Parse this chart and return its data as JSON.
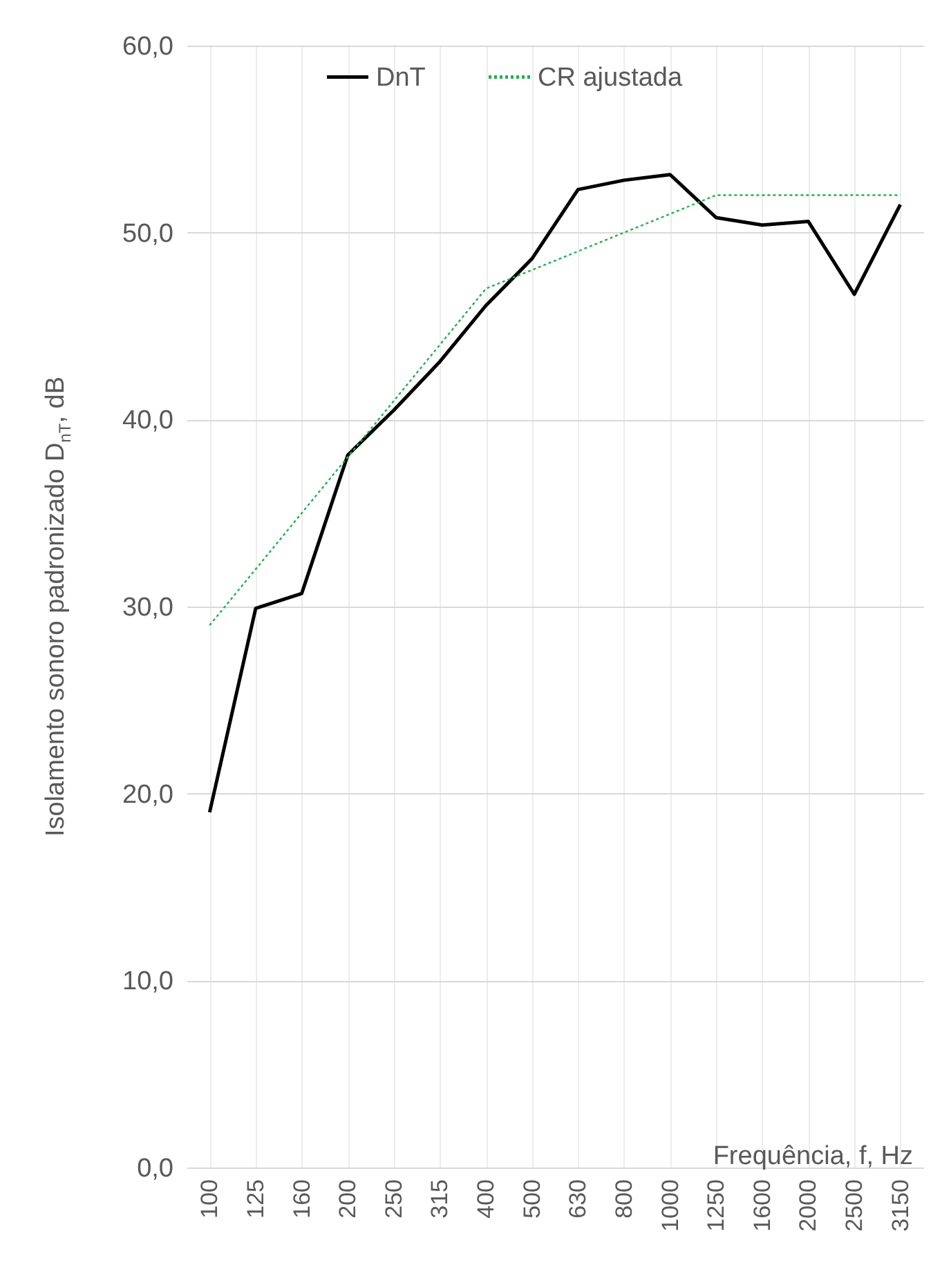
{
  "chart_data": {
    "type": "line",
    "ylabel": "Isolamento sonoro padronizado D$_{nT}$, dB",
    "xlabel": "Frequência, f, Hz",
    "categories": [
      "100",
      "125",
      "160",
      "200",
      "250",
      "315",
      "400",
      "500",
      "630",
      "800",
      "1000",
      "1250",
      "1600",
      "2000",
      "2500",
      "3150"
    ],
    "series": [
      {
        "name": "DnT",
        "color": "#000000",
        "line_style": "solid",
        "values": [
          19.0,
          29.9,
          30.7,
          38.1,
          40.5,
          43.1,
          46.1,
          48.6,
          52.3,
          52.8,
          53.1,
          50.8,
          50.4,
          50.6,
          46.7,
          51.5
        ]
      },
      {
        "name": "CR ajustada",
        "color": "#23b04f",
        "line_style": "dotted",
        "values": [
          29,
          32,
          35,
          38,
          41,
          44,
          47,
          48,
          49,
          50,
          51,
          52,
          52,
          52,
          52,
          52
        ]
      }
    ],
    "ylim": [
      0,
      60
    ],
    "yticks": [
      {
        "value": 0,
        "label": "0,0"
      },
      {
        "value": 10,
        "label": "10,0"
      },
      {
        "value": 20,
        "label": "20,0"
      },
      {
        "value": 30,
        "label": "30,0"
      },
      {
        "value": 40,
        "label": "40,0"
      },
      {
        "value": 50,
        "label": "50,0"
      },
      {
        "value": 60,
        "label": "60,0"
      }
    ],
    "grid": true,
    "legend": "top",
    "marker": "none"
  }
}
